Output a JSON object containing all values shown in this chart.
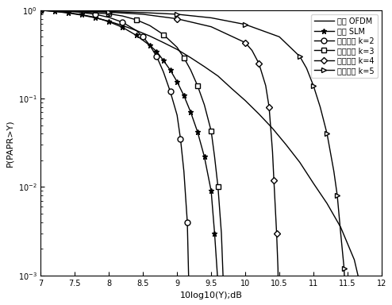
{
  "title": "",
  "xlabel": "10log10(Y);dB",
  "ylabel": "P(PAPR>Y)",
  "xlim": [
    7,
    12
  ],
  "legend_labels": [
    "原始 OFDM",
    "传统 SLM",
    "改进算法 k=2",
    "改进算法 k=3",
    "改进算法 k=4",
    "改进算法 k=5"
  ],
  "line_color": "black",
  "background_color": "#ffffff",
  "series": {
    "original_ofdm": {
      "x": [
        7.0,
        7.2,
        7.4,
        7.6,
        7.8,
        8.0,
        8.2,
        8.4,
        8.6,
        8.8,
        9.0,
        9.2,
        9.4,
        9.6,
        9.8,
        10.0,
        10.2,
        10.4,
        10.6,
        10.8,
        11.0,
        11.2,
        11.4,
        11.6,
        11.7,
        11.75,
        11.8
      ],
      "y": [
        1.0,
        0.97,
        0.93,
        0.88,
        0.82,
        0.75,
        0.67,
        0.59,
        0.51,
        0.43,
        0.36,
        0.29,
        0.23,
        0.18,
        0.13,
        0.095,
        0.067,
        0.046,
        0.03,
        0.019,
        0.011,
        0.0065,
        0.0035,
        0.0015,
        0.0007,
        0.0003,
        0.0001
      ]
    },
    "traditional_slm": {
      "x": [
        7.0,
        7.2,
        7.4,
        7.6,
        7.8,
        8.0,
        8.2,
        8.4,
        8.6,
        8.7,
        8.8,
        8.9,
        9.0,
        9.1,
        9.2,
        9.3,
        9.4,
        9.5,
        9.55,
        9.6
      ],
      "y": [
        1.0,
        0.97,
        0.94,
        0.89,
        0.83,
        0.74,
        0.64,
        0.52,
        0.4,
        0.34,
        0.27,
        0.21,
        0.155,
        0.108,
        0.07,
        0.042,
        0.022,
        0.009,
        0.003,
        0.0008
      ]
    },
    "improved_k2": {
      "x": [
        7.0,
        7.5,
        7.8,
        8.0,
        8.2,
        8.4,
        8.5,
        8.6,
        8.7,
        8.8,
        8.9,
        9.0,
        9.05,
        9.1,
        9.15,
        9.2
      ],
      "y": [
        1.0,
        0.96,
        0.9,
        0.83,
        0.73,
        0.59,
        0.5,
        0.4,
        0.3,
        0.2,
        0.12,
        0.065,
        0.035,
        0.015,
        0.004,
        0.0001
      ]
    },
    "improved_k3": {
      "x": [
        7.0,
        7.5,
        8.0,
        8.2,
        8.4,
        8.6,
        8.8,
        9.0,
        9.1,
        9.2,
        9.3,
        9.4,
        9.5,
        9.55,
        9.6,
        9.65,
        9.7
      ],
      "y": [
        1.0,
        0.97,
        0.91,
        0.86,
        0.78,
        0.67,
        0.53,
        0.38,
        0.29,
        0.21,
        0.14,
        0.085,
        0.043,
        0.022,
        0.01,
        0.003,
        0.0003
      ]
    },
    "improved_k4": {
      "x": [
        7.0,
        7.5,
        8.0,
        8.5,
        9.0,
        9.5,
        10.0,
        10.1,
        10.2,
        10.3,
        10.35,
        10.4,
        10.42,
        10.44,
        10.46,
        10.48,
        10.5
      ],
      "y": [
        1.0,
        0.98,
        0.95,
        0.9,
        0.8,
        0.65,
        0.43,
        0.35,
        0.25,
        0.14,
        0.08,
        0.025,
        0.012,
        0.006,
        0.003,
        0.0012,
        0.0001
      ]
    },
    "improved_k5": {
      "x": [
        7.0,
        7.5,
        8.0,
        8.5,
        9.0,
        9.5,
        10.0,
        10.5,
        10.8,
        10.9,
        11.0,
        11.1,
        11.2,
        11.3,
        11.35,
        11.4,
        11.45,
        11.5
      ],
      "y": [
        1.0,
        0.985,
        0.965,
        0.94,
        0.9,
        0.82,
        0.69,
        0.5,
        0.3,
        0.22,
        0.14,
        0.08,
        0.04,
        0.015,
        0.008,
        0.003,
        0.0012,
        0.0001
      ]
    }
  }
}
